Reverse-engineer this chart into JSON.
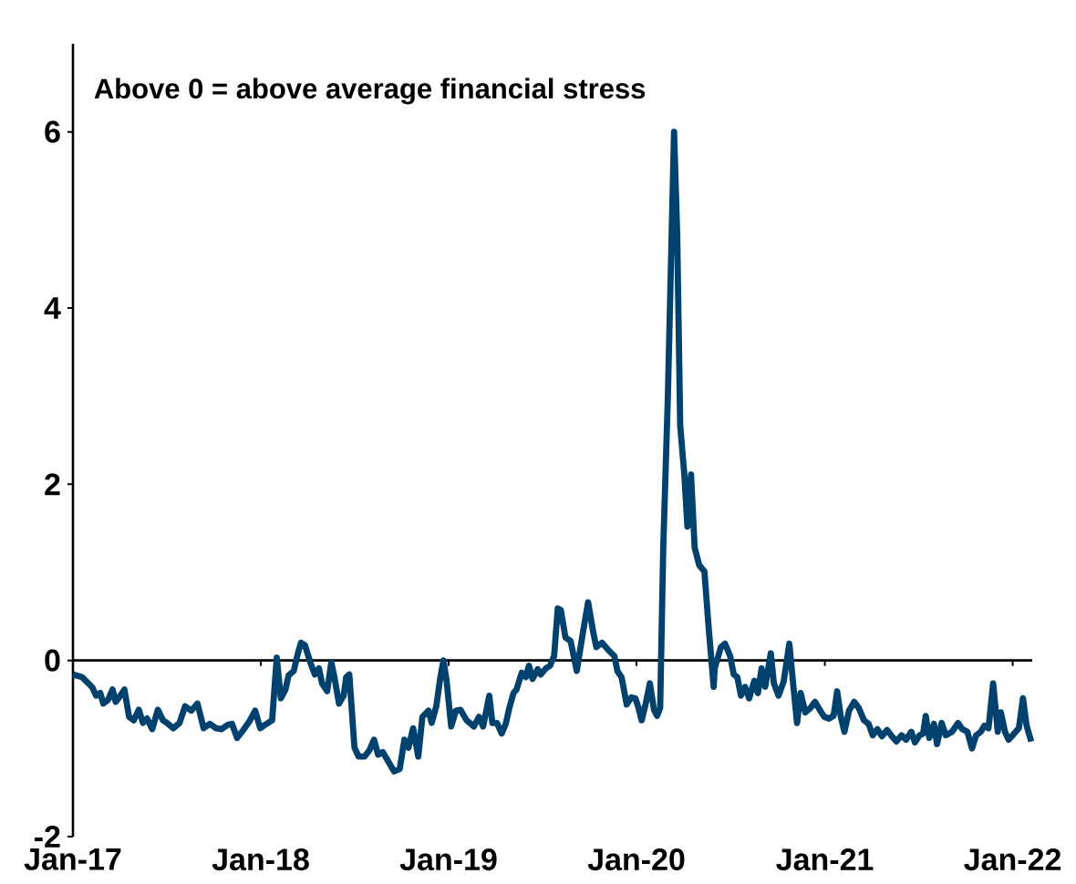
{
  "chart_data": {
    "type": "line",
    "annotations": [
      "Above 0 = above average financial stress"
    ],
    "x": [
      "2017-01-01",
      "2017-01-19",
      "2017-01-31",
      "2017-02-08",
      "2017-02-15",
      "2017-02-23",
      "2017-03-01",
      "2017-03-10",
      "2017-03-19",
      "2017-03-25",
      "2017-04-03",
      "2017-04-11",
      "2017-04-20",
      "2017-04-29",
      "2017-05-09",
      "2017-05-17",
      "2017-05-25",
      "2017-06-04",
      "2017-06-15",
      "2017-06-25",
      "2017-07-03",
      "2017-07-15",
      "2017-07-27",
      "2017-08-07",
      "2017-08-19",
      "2017-08-31",
      "2017-09-12",
      "2017-09-24",
      "2017-10-06",
      "2017-10-17",
      "2017-10-29",
      "2017-11-06",
      "2017-11-16",
      "2017-11-28",
      "2017-12-09",
      "2017-12-21",
      "2017-12-31",
      "2018-01-12",
      "2018-01-23",
      "2018-02-01",
      "2018-02-09",
      "2018-02-18",
      "2018-02-24",
      "2018-03-06",
      "2018-03-14",
      "2018-03-20",
      "2018-03-28",
      "2018-04-07",
      "2018-04-16",
      "2018-04-24",
      "2018-04-30",
      "2018-05-10",
      "2018-05-18",
      "2018-05-24",
      "2018-06-02",
      "2018-06-11",
      "2018-06-16",
      "2018-06-22",
      "2018-07-02",
      "2018-07-10",
      "2018-07-22",
      "2018-07-31",
      "2018-08-09",
      "2018-08-17",
      "2018-08-26",
      "2018-09-07",
      "2018-09-17",
      "2018-09-28",
      "2018-10-07",
      "2018-10-15",
      "2018-10-24",
      "2018-11-03",
      "2018-11-11",
      "2018-11-23",
      "2018-11-29",
      "2018-12-08",
      "2018-12-16",
      "2018-12-22",
      "2018-12-28",
      "2019-01-06",
      "2019-01-15",
      "2019-01-24",
      "2019-02-05",
      "2019-02-19",
      "2019-03-01",
      "2019-03-09",
      "2019-03-21",
      "2019-03-27",
      "2019-04-05",
      "2019-04-14",
      "2019-04-22",
      "2019-04-29",
      "2019-05-07",
      "2019-05-13",
      "2019-05-23",
      "2019-05-31",
      "2019-06-06",
      "2019-06-13",
      "2019-06-23",
      "2019-06-29",
      "2019-07-09",
      "2019-07-17",
      "2019-07-25",
      "2019-08-01",
      "2019-08-07",
      "2019-08-16",
      "2019-08-26",
      "2019-09-07",
      "2019-09-19",
      "2019-09-29",
      "2019-10-09",
      "2019-10-15",
      "2019-10-26",
      "2019-11-07",
      "2019-11-19",
      "2019-11-25",
      "2019-12-03",
      "2019-12-13",
      "2019-12-22",
      "2019-12-30",
      "2020-01-05",
      "2020-01-11",
      "2020-01-19",
      "2020-01-27",
      "2020-02-04",
      "2020-02-10",
      "2020-02-16",
      "2020-02-22",
      "2020-03-02",
      "2020-03-14",
      "2020-03-20",
      "2020-03-26",
      "2020-04-03",
      "2020-04-09",
      "2020-04-16",
      "2020-04-23",
      "2020-05-02",
      "2020-05-12",
      "2020-05-20",
      "2020-05-30",
      "2020-06-01",
      "2020-06-13",
      "2020-06-21",
      "2020-07-01",
      "2020-07-08",
      "2020-07-15",
      "2020-07-22",
      "2020-07-30",
      "2020-08-07",
      "2020-08-17",
      "2020-08-24",
      "2020-08-31",
      "2020-09-07",
      "2020-09-18",
      "2020-09-24",
      "2020-10-03",
      "2020-10-13",
      "2020-10-24",
      "2020-11-01",
      "2020-11-08",
      "2020-11-15",
      "2020-11-24",
      "2020-12-04",
      "2020-12-13",
      "2020-12-23",
      "2020-12-31",
      "2021-01-09",
      "2021-01-18",
      "2021-01-25",
      "2021-02-01",
      "2021-02-08",
      "2021-02-17",
      "2021-02-27",
      "2021-03-08",
      "2021-03-18",
      "2021-03-27",
      "2021-04-04",
      "2021-04-13",
      "2021-04-22",
      "2021-05-02",
      "2021-05-11",
      "2021-05-20",
      "2021-05-30",
      "2021-06-08",
      "2021-06-18",
      "2021-06-25",
      "2021-07-04",
      "2021-07-11",
      "2021-07-16",
      "2021-07-23",
      "2021-08-01",
      "2021-08-07",
      "2021-08-16",
      "2021-08-24",
      "2021-09-05",
      "2021-09-17",
      "2021-09-25",
      "2021-10-05",
      "2021-10-14",
      "2021-10-22",
      "2021-10-31",
      "2021-11-07",
      "2021-11-15",
      "2021-11-24",
      "2021-12-03",
      "2021-12-09",
      "2021-12-17",
      "2021-12-24",
      "2022-01-01",
      "2022-01-13",
      "2022-01-21",
      "2022-01-28",
      "2022-02-06"
    ],
    "series": [
      {
        "color": "#00416e",
        "values": [
          -0.16,
          -0.19,
          -0.26,
          -0.31,
          -0.4,
          -0.37,
          -0.49,
          -0.45,
          -0.33,
          -0.47,
          -0.4,
          -0.33,
          -0.64,
          -0.68,
          -0.56,
          -0.71,
          -0.66,
          -0.78,
          -0.56,
          -0.68,
          -0.71,
          -0.77,
          -0.71,
          -0.52,
          -0.57,
          -0.49,
          -0.77,
          -0.72,
          -0.77,
          -0.78,
          -0.73,
          -0.72,
          -0.88,
          -0.79,
          -0.7,
          -0.57,
          -0.77,
          -0.72,
          -0.68,
          0.03,
          -0.43,
          -0.33,
          -0.17,
          -0.12,
          0.08,
          0.2,
          0.17,
          -0.02,
          -0.16,
          -0.09,
          -0.26,
          -0.35,
          -0.02,
          -0.19,
          -0.49,
          -0.4,
          -0.19,
          -0.16,
          -0.99,
          -1.09,
          -1.09,
          -1.02,
          -0.9,
          -1.07,
          -1.04,
          -1.16,
          -1.26,
          -1.23,
          -0.9,
          -0.99,
          -0.77,
          -1.09,
          -0.64,
          -0.57,
          -0.71,
          -0.52,
          -0.19,
          0.0,
          -0.23,
          -0.75,
          -0.57,
          -0.56,
          -0.68,
          -0.75,
          -0.64,
          -0.75,
          -0.4,
          -0.71,
          -0.71,
          -0.83,
          -0.72,
          -0.54,
          -0.37,
          -0.33,
          -0.14,
          -0.19,
          -0.06,
          -0.21,
          -0.1,
          -0.16,
          -0.09,
          -0.06,
          0.05,
          0.59,
          0.57,
          0.26,
          0.22,
          -0.12,
          0.32,
          0.66,
          0.32,
          0.15,
          0.2,
          0.12,
          0.05,
          -0.12,
          -0.19,
          -0.5,
          -0.42,
          -0.43,
          -0.54,
          -0.68,
          -0.49,
          -0.26,
          -0.56,
          -0.63,
          -0.54,
          1.28,
          3.0,
          6.0,
          4.87,
          2.66,
          2.11,
          1.52,
          2.11,
          1.28,
          1.08,
          1.01,
          0.39,
          -0.3,
          -0.09,
          0.15,
          0.19,
          0.05,
          -0.16,
          -0.19,
          -0.4,
          -0.3,
          -0.43,
          -0.23,
          -0.37,
          -0.09,
          -0.3,
          0.08,
          -0.26,
          -0.4,
          -0.24,
          0.19,
          -0.3,
          -0.71,
          -0.37,
          -0.59,
          -0.54,
          -0.47,
          -0.57,
          -0.64,
          -0.66,
          -0.63,
          -0.35,
          -0.64,
          -0.81,
          -0.57,
          -0.47,
          -0.54,
          -0.68,
          -0.72,
          -0.85,
          -0.78,
          -0.86,
          -0.79,
          -0.86,
          -0.92,
          -0.85,
          -0.9,
          -0.81,
          -0.93,
          -0.85,
          -0.83,
          -0.63,
          -0.88,
          -0.72,
          -0.95,
          -0.71,
          -0.85,
          -0.81,
          -0.71,
          -0.78,
          -0.81,
          -1.0,
          -0.85,
          -0.81,
          -0.74,
          -0.77,
          -0.26,
          -0.81,
          -0.59,
          -0.81,
          -0.9,
          -0.85,
          -0.77,
          -0.43,
          -0.74,
          -0.92
        ]
      }
    ],
    "xlim": [
      "2017-01-01",
      "2022-02-08"
    ],
    "xticks": [
      {
        "value": "2017-01-01",
        "label": "Jan-17"
      },
      {
        "value": "2018-01-01",
        "label": "Jan-18"
      },
      {
        "value": "2019-01-01",
        "label": "Jan-19"
      },
      {
        "value": "2020-01-01",
        "label": "Jan-20"
      },
      {
        "value": "2021-01-01",
        "label": "Jan-21"
      },
      {
        "value": "2022-01-01",
        "label": "Jan-22"
      }
    ],
    "ylim": [
      -2,
      7
    ],
    "yticks": [
      -2,
      0,
      2,
      4,
      6
    ]
  }
}
